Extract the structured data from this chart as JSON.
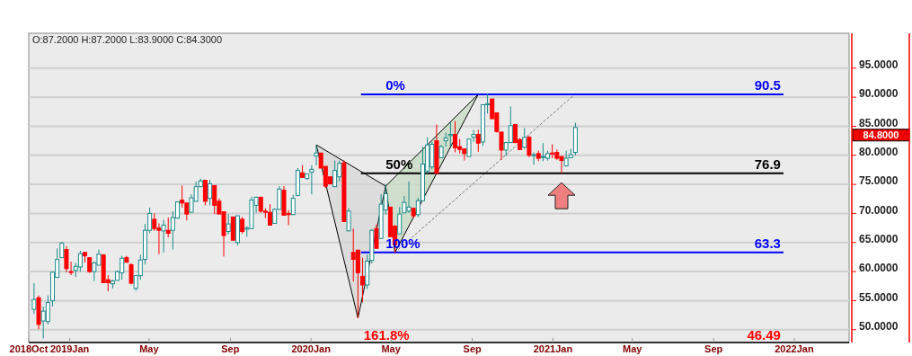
{
  "chart_data": {
    "type": "candlestick",
    "x": [
      "2018-11-08",
      "2018-11-15",
      "2018-11-22",
      "2018-11-29",
      "2018-12-06",
      "2018-12-13",
      "2018-12-20",
      "2018-12-27",
      "2019-01-03",
      "2019-01-10",
      "2019-01-17",
      "2019-01-24",
      "2019-01-31",
      "2019-02-07",
      "2019-02-14",
      "2019-02-21",
      "2019-02-28",
      "2019-03-07",
      "2019-03-14",
      "2019-03-21",
      "2019-03-28",
      "2019-04-04",
      "2019-04-11",
      "2019-04-18",
      "2019-04-25",
      "2019-05-02",
      "2019-05-09",
      "2019-05-16",
      "2019-05-23",
      "2019-05-30",
      "2019-06-06",
      "2019-06-13",
      "2019-06-20",
      "2019-06-27",
      "2019-07-04",
      "2019-07-11",
      "2019-07-18",
      "2019-07-25",
      "2019-08-01",
      "2019-08-08",
      "2019-08-15",
      "2019-08-22",
      "2019-08-29",
      "2019-09-05",
      "2019-09-12",
      "2019-09-19",
      "2019-09-26",
      "2019-10-03",
      "2019-10-10",
      "2019-10-17",
      "2019-10-24",
      "2019-10-31",
      "2019-11-07",
      "2019-11-14",
      "2019-11-21",
      "2019-11-28",
      "2019-12-05",
      "2019-12-12",
      "2019-12-19",
      "2019-12-26",
      "2020-01-02",
      "2020-01-09",
      "2020-01-16",
      "2020-01-23",
      "2020-01-30",
      "2020-02-06",
      "2020-02-13",
      "2020-02-20",
      "2020-02-27",
      "2020-03-05",
      "2020-03-12",
      "2020-03-19",
      "2020-03-26",
      "2020-04-02",
      "2020-04-09",
      "2020-04-16",
      "2020-04-23",
      "2020-04-30",
      "2020-05-07",
      "2020-05-14",
      "2020-05-21",
      "2020-05-28",
      "2020-06-04",
      "2020-06-11",
      "2020-06-18",
      "2020-06-25",
      "2020-07-02",
      "2020-07-09",
      "2020-07-16",
      "2020-07-23",
      "2020-07-30",
      "2020-08-06",
      "2020-08-13",
      "2020-08-20",
      "2020-08-27",
      "2020-09-03",
      "2020-09-10",
      "2020-09-17",
      "2020-09-24",
      "2020-10-01",
      "2020-10-08",
      "2020-10-15",
      "2020-10-22",
      "2020-10-29",
      "2020-11-05",
      "2020-11-12",
      "2020-11-19",
      "2020-11-26",
      "2020-12-03",
      "2020-12-10",
      "2020-12-17",
      "2020-12-24",
      "2020-12-31",
      "2021-01-07",
      "2021-01-14",
      "2021-01-21",
      "2021-01-28",
      "2021-02-04"
    ],
    "ohlc": [
      [
        53.5,
        58,
        52.7,
        55.2
      ],
      [
        55.5,
        55.9,
        50.1,
        50.9
      ],
      [
        51.5,
        54,
        48.5,
        53.2
      ],
      [
        51.4,
        55.9,
        50.9,
        54.7
      ],
      [
        55,
        59.9,
        54,
        59.9
      ],
      [
        59,
        64,
        59,
        62.1
      ],
      [
        62.4,
        65.1,
        62.4,
        64.9
      ],
      [
        63.8,
        64.4,
        59.9,
        60.5
      ],
      [
        60,
        61.7,
        59.4,
        59.9
      ],
      [
        60.2,
        61.5,
        59.1,
        60.9
      ],
      [
        60.8,
        63.6,
        60,
        63.1
      ],
      [
        63.3,
        63.3,
        61.6,
        62.7
      ],
      [
        62.4,
        62.4,
        59.8,
        60
      ],
      [
        60,
        61.7,
        58.4,
        61.5
      ],
      [
        61.1,
        63.8,
        61.1,
        63
      ],
      [
        62.9,
        62.9,
        58.1,
        58.1
      ],
      [
        58.6,
        59.4,
        56.6,
        58.1
      ],
      [
        57.9,
        58.6,
        57.1,
        58.4
      ],
      [
        58.5,
        60.2,
        58.5,
        60
      ],
      [
        59.8,
        62.7,
        58.6,
        62.3
      ],
      [
        62.4,
        62.7,
        61.6,
        61.6
      ],
      [
        61.2,
        61.4,
        57.8,
        58
      ],
      [
        57.1,
        59.3,
        56.7,
        59.3
      ],
      [
        59.3,
        62.9,
        58.6,
        62
      ],
      [
        62.1,
        68.2,
        61.2,
        67.1
      ],
      [
        67.1,
        71,
        66.6,
        70
      ],
      [
        69,
        70,
        67,
        67.4
      ],
      [
        67.5,
        68.3,
        63,
        67.1
      ],
      [
        67,
        68.9,
        63.3,
        68
      ],
      [
        67.1,
        69.3,
        65.9,
        66.6
      ],
      [
        67.1,
        70.4,
        63.8,
        69.3
      ],
      [
        69.2,
        72,
        69.2,
        72
      ],
      [
        72.3,
        74.8,
        71,
        71.8
      ],
      [
        71.8,
        71.8,
        68.8,
        69.9
      ],
      [
        70.2,
        73.3,
        70.2,
        72.7
      ],
      [
        72.1,
        75.5,
        72.1,
        74.6
      ],
      [
        74.6,
        76,
        74.6,
        75.6
      ],
      [
        75.7,
        75.7,
        71.4,
        72.1
      ],
      [
        72.6,
        75.8,
        71.4,
        75.1
      ],
      [
        74.8,
        74.8,
        69.9,
        71.4
      ],
      [
        72.1,
        72.6,
        69.9,
        69.9
      ],
      [
        70.3,
        70.3,
        62.6,
        66.2
      ],
      [
        66.9,
        69.9,
        66.4,
        68.2
      ],
      [
        69.4,
        69.4,
        65.4,
        65.4
      ],
      [
        65,
        69.6,
        64.5,
        69.6
      ],
      [
        69,
        69.4,
        66.5,
        66.9
      ],
      [
        67.3,
        67.8,
        66,
        67.5
      ],
      [
        67.4,
        72.9,
        67.4,
        72.3
      ],
      [
        71.4,
        72.9,
        70.1,
        72.8
      ],
      [
        72.8,
        72.8,
        70.1,
        70.4
      ],
      [
        70.4,
        70.9,
        69.2,
        70.2
      ],
      [
        70.2,
        71.6,
        67.9,
        68
      ],
      [
        68.3,
        70.9,
        68.3,
        70.7
      ],
      [
        70.7,
        74.7,
        70.7,
        74.2
      ],
      [
        74,
        74.7,
        69.7,
        69.7
      ],
      [
        70,
        70.6,
        68,
        69.8
      ],
      [
        69.8,
        73.2,
        69.8,
        72.6
      ],
      [
        73.1,
        77.8,
        73.1,
        77.4
      ],
      [
        77,
        78.3,
        76.2,
        76.2
      ],
      [
        76,
        76.8,
        75.8,
        76.8
      ],
      [
        77.1,
        78.3,
        73.3,
        77.6
      ],
      [
        79.9,
        81.7,
        78.3,
        80.4
      ],
      [
        80.4,
        80.4,
        77.8,
        77.8
      ],
      [
        78.1,
        78.1,
        74.4,
        74.7
      ],
      [
        76.3,
        76.3,
        75,
        75.1
      ],
      [
        74.6,
        79.1,
        74.6,
        77.4
      ],
      [
        76.3,
        79.1,
        75.5,
        78.6
      ],
      [
        78.7,
        79.1,
        68.6,
        68.6
      ],
      [
        67,
        70.9,
        67,
        70.4
      ],
      [
        63.3,
        67.4,
        58.3,
        62.1
      ],
      [
        63.7,
        63.7,
        52,
        59.8
      ],
      [
        59.2,
        62.4,
        54.7,
        57.7
      ],
      [
        57.7,
        62.9,
        57,
        61.8
      ],
      [
        61.9,
        67.3,
        61.4,
        67.1
      ],
      [
        67.4,
        68.1,
        64,
        64
      ],
      [
        65.7,
        73.3,
        65.7,
        71.6
      ],
      [
        70.6,
        75,
        69.8,
        73.4
      ],
      [
        71.1,
        71.1,
        66,
        66
      ],
      [
        67.8,
        68,
        63.2,
        64.6
      ],
      [
        66.5,
        71.1,
        66.5,
        69.9
      ],
      [
        70.1,
        73,
        70.1,
        71.9
      ],
      [
        70.4,
        75.5,
        70.1,
        71.1
      ],
      [
        70.9,
        70.9,
        69.2,
        69.6
      ],
      [
        69.8,
        72.7,
        69.4,
        72.2
      ],
      [
        72.2,
        81.5,
        72.2,
        78.5
      ],
      [
        77.3,
        83.1,
        76.9,
        81.8
      ],
      [
        78,
        82.3,
        77.6,
        81.9
      ],
      [
        82.5,
        85.3,
        76.9,
        76.9
      ],
      [
        79.6,
        81.8,
        79.5,
        81.5
      ],
      [
        82.5,
        83.9,
        81.5,
        83
      ],
      [
        83.4,
        85.7,
        81.5,
        83.6
      ],
      [
        83.6,
        85.9,
        80.5,
        81.3
      ],
      [
        81.5,
        82.8,
        80.3,
        81
      ],
      [
        81.1,
        81.1,
        79.1,
        80.3
      ],
      [
        79.8,
        82.8,
        79.8,
        82.8
      ],
      [
        83.1,
        84.4,
        82.3,
        83.6
      ],
      [
        83.6,
        84.4,
        80.6,
        82.1
      ],
      [
        82.3,
        88.7,
        81.6,
        88.7
      ],
      [
        88.7,
        90.6,
        87.2,
        88.9
      ],
      [
        89.7,
        89.7,
        86.3,
        86.3
      ],
      [
        87.3,
        87.3,
        83.9,
        84.1
      ],
      [
        84,
        84,
        79.2,
        80.9
      ],
      [
        80.9,
        82.2,
        79.9,
        82.2
      ],
      [
        82.2,
        88.4,
        82.2,
        85.1
      ],
      [
        85.3,
        85.4,
        82.1,
        82.2
      ],
      [
        82.7,
        83,
        80.9,
        81
      ],
      [
        81.4,
        84.7,
        81.1,
        83.1
      ],
      [
        83.1,
        83.4,
        79.7,
        80
      ],
      [
        80,
        80.5,
        78.4,
        80.1
      ],
      [
        80.3,
        80.8,
        79,
        79.5
      ],
      [
        79.7,
        82.1,
        79,
        79.8
      ],
      [
        79.5,
        80.8,
        79.1,
        80.3
      ],
      [
        80.4,
        81.9,
        79.5,
        80.3
      ],
      [
        80.5,
        81,
        79.2,
        79.5
      ],
      [
        79.8,
        79.8,
        76.9,
        79.1
      ],
      [
        78.2,
        80.8,
        78.1,
        79.5
      ],
      [
        79.6,
        81.1,
        79.5,
        80.1
      ],
      [
        80.5,
        85.6,
        80,
        84.8
      ]
    ],
    "xlim": [
      "2018-10-31",
      "2022-03-25"
    ],
    "xticks": [
      {
        "value": "2018-10-31",
        "label": "2018Oct"
      },
      {
        "value": "2019-01-01",
        "label": "2019Jan"
      },
      {
        "value": "2019-05-01",
        "label": "May"
      },
      {
        "value": "2019-09-01",
        "label": "Sep"
      },
      {
        "value": "2020-01-01",
        "label": "2020Jan"
      },
      {
        "value": "2020-05-01",
        "label": "May"
      },
      {
        "value": "2020-09-01",
        "label": "Sep"
      },
      {
        "value": "2021-01-01",
        "label": "2021Jan"
      },
      {
        "value": "2021-05-01",
        "label": "May"
      },
      {
        "value": "2021-09-01",
        "label": "Sep"
      },
      {
        "value": "2022-01-01",
        "label": "2022Jan"
      }
    ],
    "ylim": [
      47.8,
      101
    ],
    "yticks": [
      {
        "value": 50,
        "label": "50.0000"
      },
      {
        "value": 55,
        "label": "55.0000"
      },
      {
        "value": 60,
        "label": "60.0000"
      },
      {
        "value": 65,
        "label": "65.0000"
      },
      {
        "value": 70,
        "label": "70.0000"
      },
      {
        "value": 75,
        "label": "75.0000"
      },
      {
        "value": 80,
        "label": "80.0000"
      },
      {
        "value": 85,
        "label": "85.0000"
      },
      {
        "value": 90,
        "label": "90.0000"
      },
      {
        "value": 95,
        "label": "95.0000"
      }
    ],
    "grid": "y",
    "ref_lines": [
      {
        "axis": "y",
        "value": 90.5,
        "label": "90.5",
        "color": "#0000ff"
      },
      {
        "axis": "y",
        "value": 76.9,
        "label": "76.9",
        "color": "#000000"
      },
      {
        "axis": "y",
        "value": 63.3,
        "label": "63.3",
        "color": "#0000ff"
      }
    ],
    "annotations": [
      "O:87.2000  H:87.2000  L:83.9000  C:84.3000",
      "161.8%",
      "46.49",
      {
        "text": "0%",
        "x": "2020-04-23",
        "y": 90.5
      },
      {
        "text": "50%",
        "x": "2020-04-23",
        "y": 76.9
      },
      {
        "text": "100%",
        "x": "2020-04-23",
        "y": 63.3
      },
      "84.8000"
    ]
  }
}
